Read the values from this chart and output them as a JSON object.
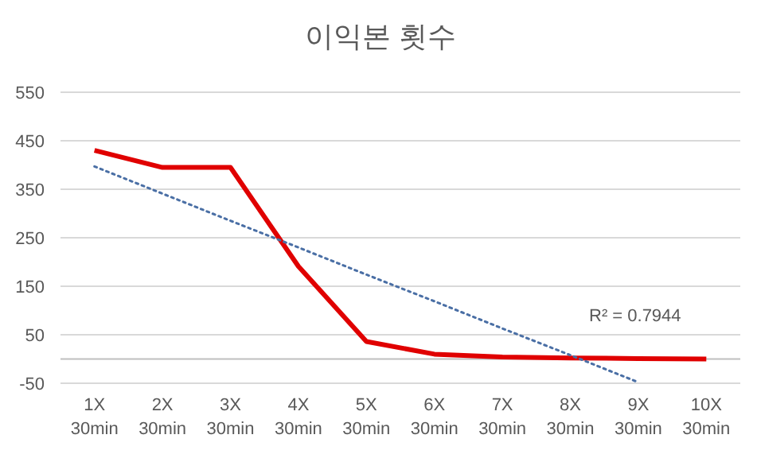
{
  "chart_data": {
    "type": "line",
    "title": "이익본 횟수",
    "categories": [
      "1X\n30min",
      "2X\n30min",
      "3X\n30min",
      "4X\n30min",
      "5X\n30min",
      "6X\n30min",
      "7X\n30min",
      "8X\n30min",
      "9X\n30min",
      "10X\n30min"
    ],
    "series": [
      {
        "color": "#e00000",
        "values": [
          430,
          395,
          395,
          191,
          36,
          10,
          4,
          2,
          1,
          0
        ]
      },
      {
        "type": "line",
        "line_style": "dotted",
        "color": "#4a6fa5",
        "values": [
          397,
          341,
          285,
          230,
          174,
          119,
          63,
          8,
          -48,
          null
        ]
      }
    ],
    "ylim": [
      -50,
      550
    ],
    "yticks": [
      -50,
      50,
      150,
      250,
      350,
      450,
      550
    ],
    "grid": "y",
    "marker": "none",
    "annotations": [
      "R² = 0.7944"
    ]
  }
}
